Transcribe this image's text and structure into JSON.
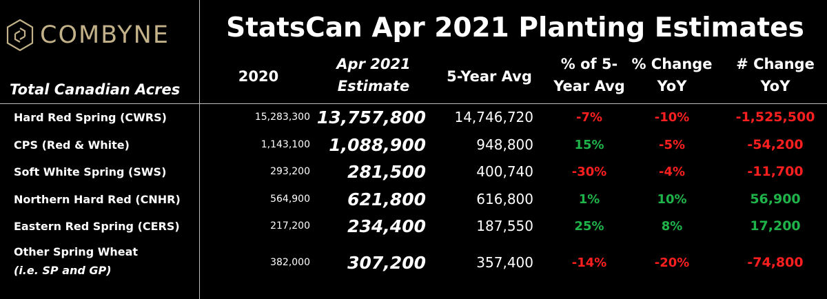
{
  "colors": {
    "negative": "#ff1f1f",
    "positive": "#1fb44a",
    "brand": "#c3b289"
  },
  "logo": {
    "text": "COMBYNE"
  },
  "subtitle": "Total Canadian Acres",
  "title": "StatsCan Apr 2021 Planting Estimates",
  "headers": {
    "c2020": "2020",
    "estimate_l1": "Apr 2021",
    "estimate_l2": "Estimate",
    "avg": "5-Year Avg",
    "pct5_l1": "% of 5-",
    "pct5_l2": "Year Avg",
    "yoy_l1": "% Change",
    "yoy_l2": "YoY",
    "num_l1": "# Change",
    "num_l2": "YoY"
  },
  "rows": [
    {
      "label": "Hard Red Spring (CWRS)",
      "v2020": "15,283,300",
      "estimate": "13,757,800",
      "avg": "14,746,720",
      "pct5": "-7%",
      "yoy": "-10%",
      "num": "-1,525,500"
    },
    {
      "label": "CPS (Red & White)",
      "v2020": "1,143,100",
      "estimate": "1,088,900",
      "avg": "948,800",
      "pct5": "15%",
      "yoy": "-5%",
      "num": "-54,200"
    },
    {
      "label": "Soft White Spring (SWS)",
      "v2020": "293,200",
      "estimate": "281,500",
      "avg": "400,740",
      "pct5": "-30%",
      "yoy": "-4%",
      "num": "-11,700"
    },
    {
      "label": "Northern Hard Red (CNHR)",
      "v2020": "564,900",
      "estimate": "621,800",
      "avg": "616,800",
      "pct5": "1%",
      "yoy": "10%",
      "num": "56,900"
    },
    {
      "label": "Eastern Red Spring (CERS)",
      "v2020": "217,200",
      "estimate": "234,400",
      "avg": "187,550",
      "pct5": "25%",
      "yoy": "8%",
      "num": "17,200"
    },
    {
      "label_l1": "Other Spring Wheat",
      "label_l2": "(i.e. SP and GP)",
      "v2020": "382,000",
      "estimate": "307,200",
      "avg": "357,400",
      "pct5": "-14%",
      "yoy": "-20%",
      "num": "-74,800"
    }
  ]
}
